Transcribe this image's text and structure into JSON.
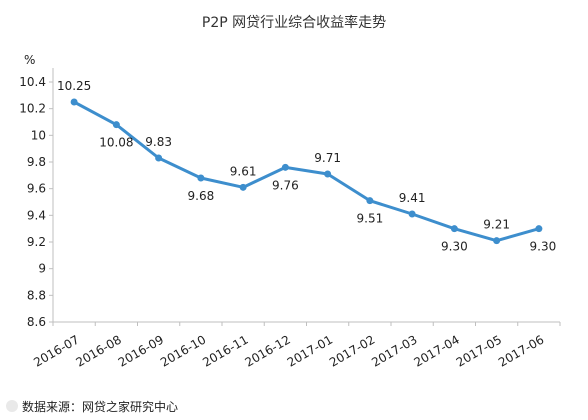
{
  "chart_data": {
    "type": "line",
    "title": "P2P 网贷行业综合收益率走势",
    "ylabel": "%",
    "xlabel": "",
    "ylim": [
      8.6,
      10.4
    ],
    "yticks": [
      "8.6",
      "8.8",
      "9",
      "9.2",
      "9.4",
      "9.6",
      "9.8",
      "10",
      "10.2",
      "10.4"
    ],
    "categories": [
      "2016-07",
      "2016-08",
      "2016-09",
      "2016-10",
      "2016-11",
      "2016-12",
      "2017-01",
      "2017-02",
      "2017-03",
      "2017-04",
      "2017-05",
      "2017-06"
    ],
    "values": [
      10.25,
      10.08,
      9.83,
      9.68,
      9.61,
      9.76,
      9.71,
      9.51,
      9.41,
      9.3,
      9.21,
      9.3
    ],
    "value_labels": [
      "10.25",
      "10.08",
      "9.83",
      "9.68",
      "9.61",
      "9.76",
      "9.71",
      "9.51",
      "9.41",
      "9.30",
      "9.21",
      "9.30"
    ],
    "label_position": [
      "above",
      "below",
      "above",
      "below",
      "above",
      "below",
      "above",
      "below",
      "above",
      "below",
      "above",
      "below"
    ],
    "grid": false,
    "series_color": "#3d8ecd",
    "axis_color": "#bfbfbf"
  },
  "footer": {
    "source": "数据来源：网贷之家研究中心"
  }
}
